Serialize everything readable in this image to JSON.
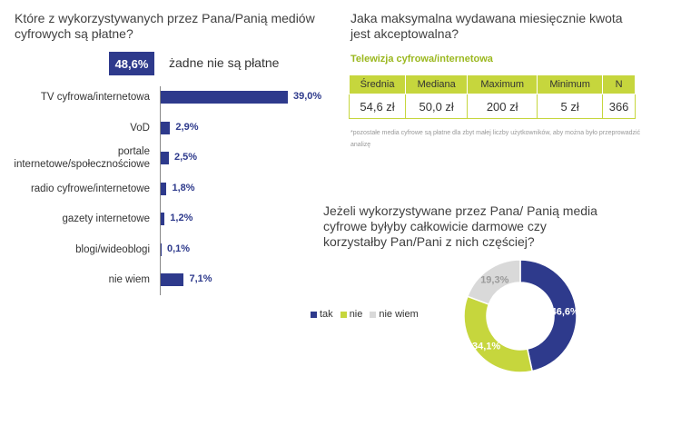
{
  "q1": {
    "title": "Które z wykorzystywanych przez Pana/Panią mediów cyfrowych są płatne?",
    "highlight_value": "48,6%",
    "highlight_label": "żadne nie są płatne"
  },
  "q2": {
    "title": "Jaka maksymalna wydawana miesięcznie kwota jest akceptowalna?",
    "table_title": "Telewizja cyfrowa/internetowa",
    "headers": [
      "Średnia",
      "Mediana",
      "Maximum",
      "Minimum",
      "N"
    ],
    "values": [
      "54,6 zł",
      "50,0 zł",
      "200 zł",
      "5 zł",
      "366"
    ],
    "footnote": "*pozostałe media cyfrowe są płatne dla zbyt małej liczby użytkowników, aby można było przeprowadzić analizę"
  },
  "q3": {
    "title": "Jeżeli wykorzystywane przez Pana/ Panią media cyfrowe byłyby całkowicie darmowe czy korzystałby Pan/Pani z nich częściej?"
  },
  "colors": {
    "navy": "#2e3a8c",
    "lime": "#c6d63d",
    "grey": "#d9d9d9"
  },
  "chart_data": [
    {
      "type": "bar",
      "orientation": "horizontal",
      "categories": [
        "TV cyfrowa/internetowa",
        "VoD",
        "portale internetowe/społecznościowe",
        "radio cyfrowe/internetowe",
        "gazety internetowe",
        "blogi/wideoblogi",
        "nie wiem"
      ],
      "values": [
        39.0,
        2.9,
        2.5,
        1.8,
        1.2,
        0.1,
        7.1
      ],
      "value_labels": [
        "39,0%",
        "2,9%",
        "2,5%",
        "1,8%",
        "1,2%",
        "0,1%",
        "7,1%"
      ],
      "max": 39.0
    },
    {
      "type": "pie",
      "variant": "donut",
      "labels": [
        "tak",
        "nie",
        "nie wiem"
      ],
      "values": [
        46.6,
        34.1,
        19.3
      ],
      "value_labels": [
        "46,6%",
        "34,1%",
        "19,3%"
      ],
      "colors": [
        "#2e3a8c",
        "#c6d63d",
        "#d9d9d9"
      ],
      "legend": "left"
    }
  ]
}
